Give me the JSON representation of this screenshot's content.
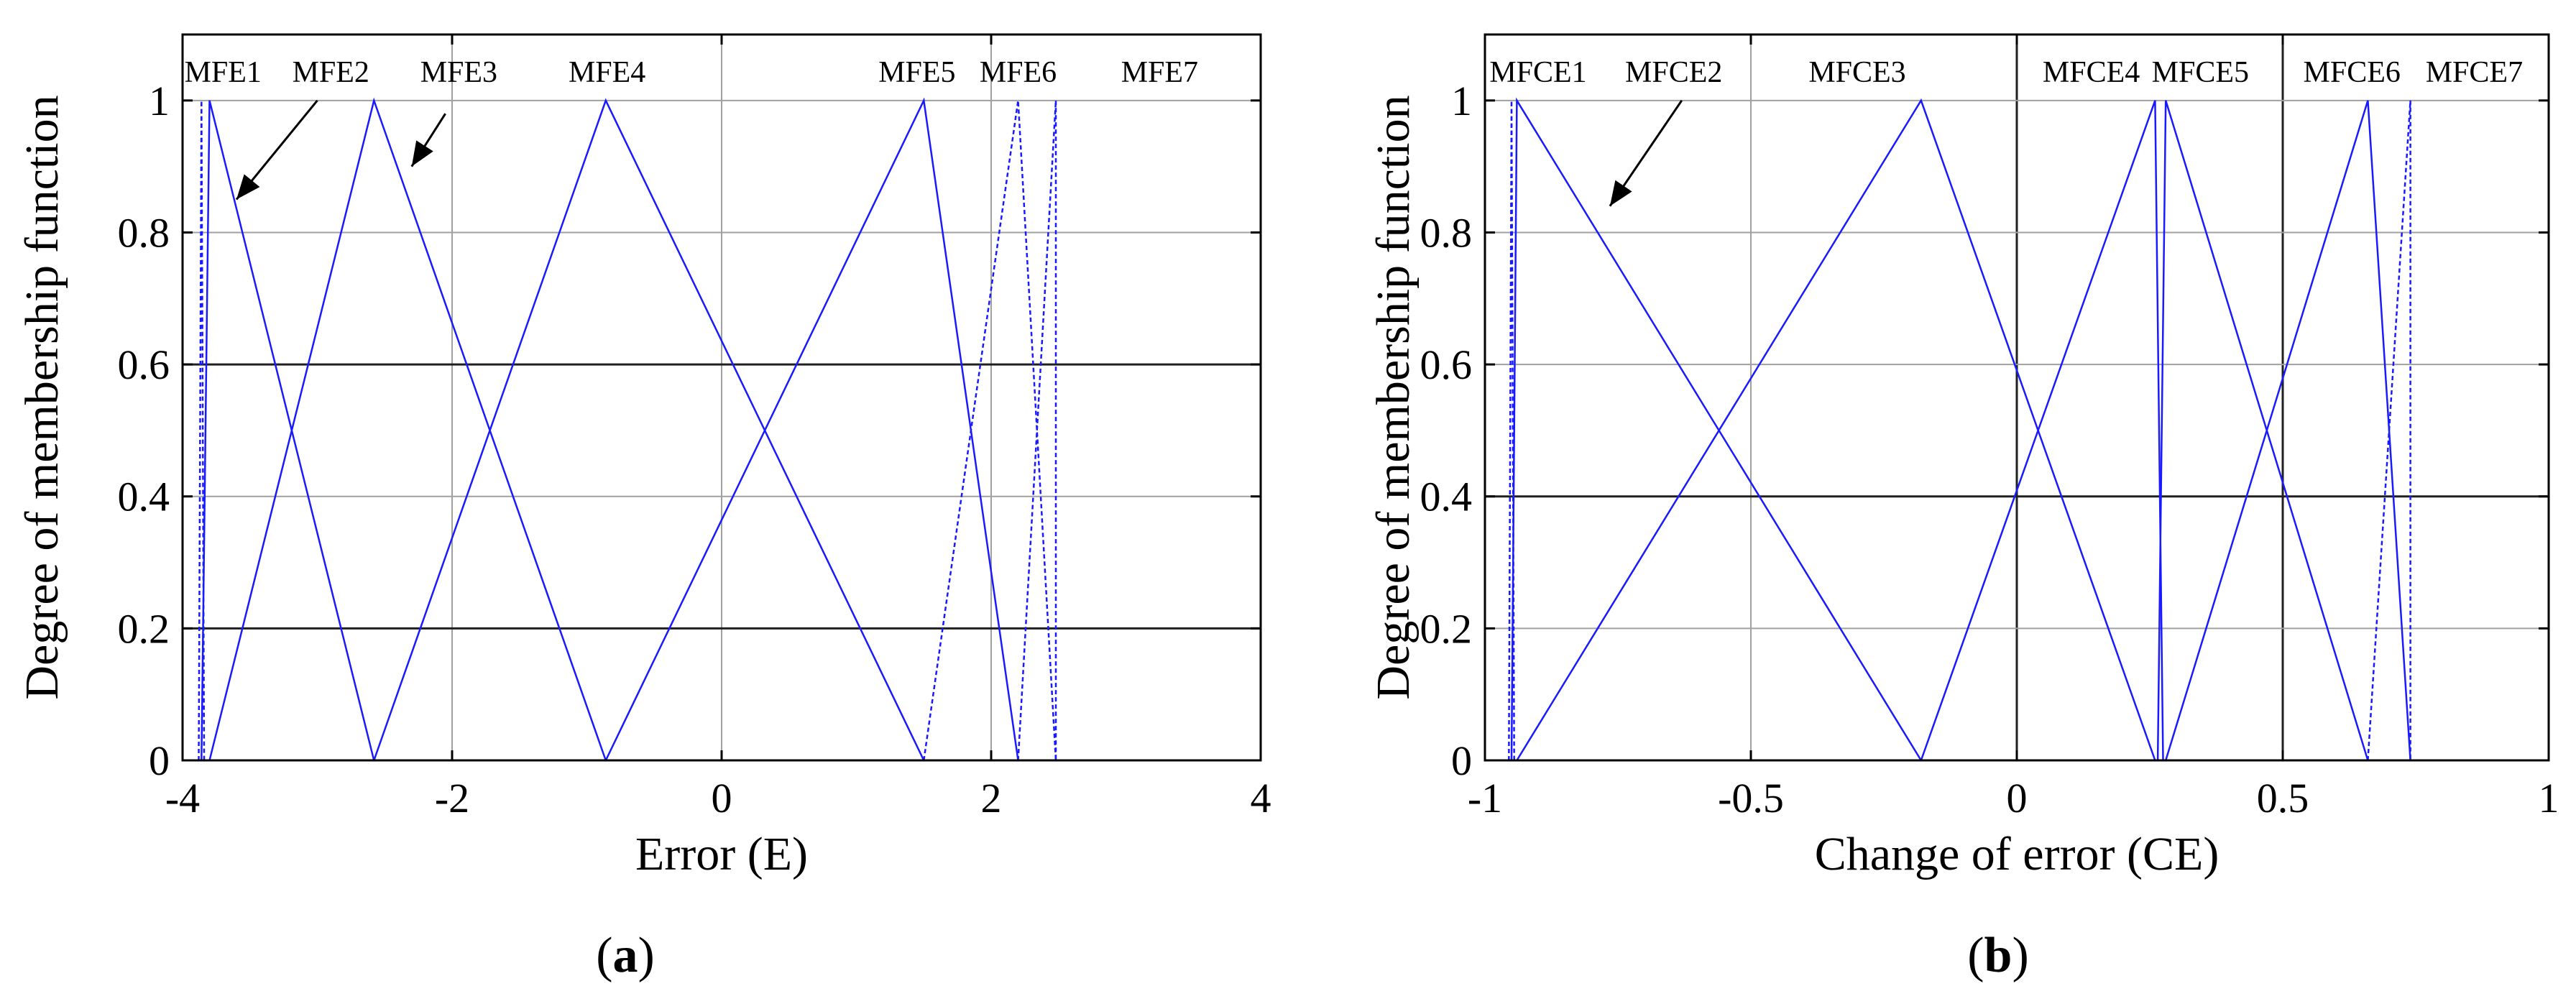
{
  "chart_data": [
    {
      "type": "line",
      "panel_label": "a",
      "xlabel": "Error (E)",
      "ylabel": "Degree of membership function",
      "xlim": [
        -4,
        4
      ],
      "ylim": [
        0,
        1.1
      ],
      "xticks": [
        -4,
        -2,
        0,
        2,
        4
      ],
      "yticks": [
        0,
        0.2,
        0.4,
        0.6,
        0.8,
        1
      ],
      "xtick_labels": [
        "-4",
        "-2",
        "0",
        "2",
        "4"
      ],
      "ytick_labels": [
        "0",
        "0.2",
        "0.4",
        "0.6",
        "0.8",
        "1"
      ],
      "x_dark_grid": [],
      "y_dark_grid": [
        0.2,
        0.6
      ],
      "series": [
        {
          "name": "MFE1",
          "x": [
            -3.88,
            -3.86,
            -3.84
          ],
          "y": [
            0,
            1,
            0
          ],
          "dashed": true
        },
        {
          "name": "MFE2",
          "x": [
            -3.86,
            -3.8,
            -2.58
          ],
          "y": [
            0,
            1,
            0
          ]
        },
        {
          "name": "MFE3",
          "x": [
            -3.8,
            -2.58,
            -0.86
          ],
          "y": [
            0,
            1,
            0
          ]
        },
        {
          "name": "MFE4",
          "x": [
            -2.58,
            -0.86,
            1.5
          ],
          "y": [
            0,
            1,
            0
          ]
        },
        {
          "name": "MFE5",
          "x": [
            -0.86,
            1.5,
            2.2
          ],
          "y": [
            0,
            1,
            0
          ]
        },
        {
          "name": "MFE6",
          "x": [
            1.5,
            2.2,
            2.48
          ],
          "y": [
            0,
            1,
            0
          ],
          "dashed": true
        },
        {
          "name": "MFE7",
          "x": [
            2.2,
            2.48,
            2.48
          ],
          "y": [
            0,
            1,
            0
          ],
          "dashed": true
        }
      ],
      "mf_labels": [
        {
          "text": "MFE1",
          "x": -3.7
        },
        {
          "text": "MFE2",
          "x": -2.9
        },
        {
          "text": "MFE3",
          "x": -1.95
        },
        {
          "text": "MFE4",
          "x": -0.85
        },
        {
          "text": "MFE5",
          "x": 1.45
        },
        {
          "text": "MFE6",
          "x": 2.2
        },
        {
          "text": "MFE7",
          "x": 3.25
        }
      ],
      "annotations": [
        {
          "from": [
            -3.0,
            1.0
          ],
          "to": [
            -3.6,
            0.85
          ]
        },
        {
          "from": [
            -2.05,
            0.98
          ],
          "to": [
            -2.3,
            0.9
          ]
        }
      ]
    },
    {
      "type": "line",
      "panel_label": "b",
      "xlabel": "Change of error (CE)",
      "ylabel": "Degree of membership function",
      "xlim": [
        -1,
        1
      ],
      "ylim": [
        0,
        1.1
      ],
      "xticks": [
        -1,
        -0.5,
        0,
        0.5,
        1
      ],
      "yticks": [
        0,
        0.2,
        0.4,
        0.6,
        0.8,
        1
      ],
      "xtick_labels": [
        "-1",
        "-0.5",
        "0",
        "0.5",
        "1"
      ],
      "ytick_labels": [
        "0",
        "0.2",
        "0.4",
        "0.6",
        "0.8",
        "1"
      ],
      "x_dark_grid": [
        0,
        0.5
      ],
      "y_dark_grid": [
        0.4
      ],
      "series": [
        {
          "name": "MFCE1",
          "x": [
            -0.955,
            -0.95,
            -0.945
          ],
          "y": [
            0,
            1,
            0
          ],
          "dashed": true
        },
        {
          "name": "MFCE2",
          "x": [
            -0.95,
            -0.94,
            -0.18
          ],
          "y": [
            0,
            1,
            0
          ]
        },
        {
          "name": "MFCE3",
          "x": [
            -0.94,
            -0.18,
            0.26
          ],
          "y": [
            0,
            1,
            0
          ]
        },
        {
          "name": "MFCE4",
          "x": [
            -0.18,
            0.26,
            0.275
          ],
          "y": [
            0,
            1,
            0
          ]
        },
        {
          "name": "MFCE5",
          "x": [
            0.265,
            0.28,
            0.66
          ],
          "y": [
            0,
            1,
            0
          ]
        },
        {
          "name": "MFCE6",
          "x": [
            0.28,
            0.66,
            0.74
          ],
          "y": [
            0,
            1,
            0
          ]
        },
        {
          "name": "MFCE7",
          "x": [
            0.66,
            0.74,
            0.74
          ],
          "y": [
            0,
            1,
            0
          ],
          "dashed": true
        }
      ],
      "mf_labels": [
        {
          "text": "MFCE1",
          "x": -0.9
        },
        {
          "text": "MFCE2",
          "x": -0.645
        },
        {
          "text": "MFCE3",
          "x": -0.3
        },
        {
          "text": "MFCE4",
          "x": 0.14
        },
        {
          "text": "MFCE5",
          "x": 0.345
        },
        {
          "text": "MFCE6",
          "x": 0.63
        },
        {
          "text": "MFCE7",
          "x": 0.86
        }
      ],
      "annotations": [
        {
          "from": [
            -0.63,
            1.0
          ],
          "to": [
            -0.765,
            0.84
          ]
        }
      ]
    }
  ]
}
